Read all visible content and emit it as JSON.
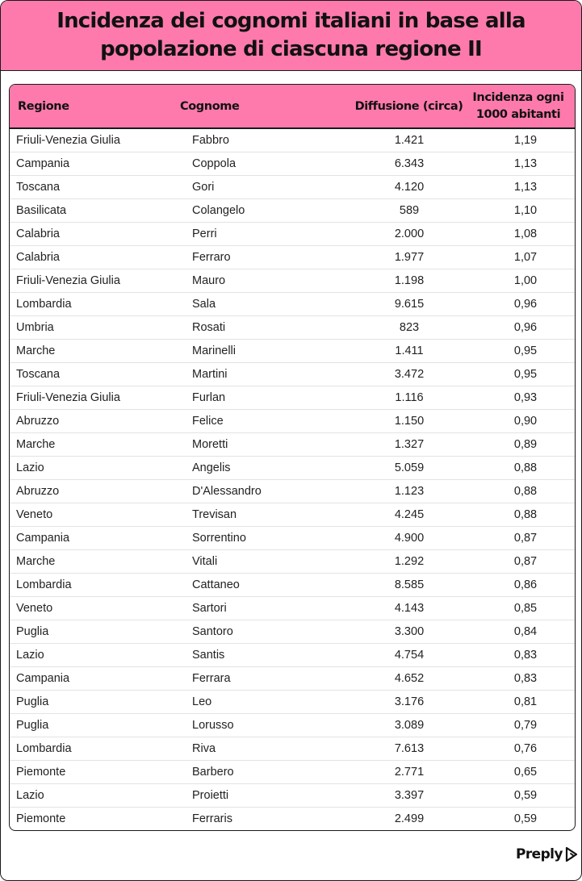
{
  "title": "Incidenza dei cognomi italiani in base alla popolazione di ciascuna regione II",
  "colors": {
    "accent_pink": "#ff7aac",
    "border": "#1a1a1a"
  },
  "table": {
    "headers": [
      "Regione",
      "Cognome",
      "Diffusione (circa)",
      "Incidenza ogni 1000 abitanti"
    ],
    "rows": [
      [
        "Friuli-Venezia Giulia",
        "Fabbro",
        "1.421",
        "1,19"
      ],
      [
        "Campania",
        "Coppola",
        "6.343",
        "1,13"
      ],
      [
        "Toscana",
        "Gori",
        "4.120",
        "1,13"
      ],
      [
        "Basilicata",
        "Colangelo",
        "589",
        "1,10"
      ],
      [
        "Calabria",
        "Perri",
        "2.000",
        "1,08"
      ],
      [
        "Calabria",
        "Ferraro",
        "1.977",
        "1,07"
      ],
      [
        "Friuli-Venezia Giulia",
        "Mauro",
        "1.198",
        "1,00"
      ],
      [
        "Lombardia",
        "Sala",
        "9.615",
        "0,96"
      ],
      [
        "Umbria",
        "Rosati",
        "823",
        "0,96"
      ],
      [
        "Marche",
        "Marinelli",
        "1.411",
        "0,95"
      ],
      [
        "Toscana",
        "Martini",
        "3.472",
        "0,95"
      ],
      [
        "Friuli-Venezia Giulia",
        "Furlan",
        "1.116",
        "0,93"
      ],
      [
        "Abruzzo",
        "Felice",
        "1.150",
        "0,90"
      ],
      [
        "Marche",
        "Moretti",
        "1.327",
        "0,89"
      ],
      [
        "Lazio",
        "Angelis",
        "5.059",
        "0,88"
      ],
      [
        "Abruzzo",
        "D'Alessandro",
        "1.123",
        "0,88"
      ],
      [
        "Veneto",
        "Trevisan",
        "4.245",
        "0,88"
      ],
      [
        "Campania",
        "Sorrentino",
        "4.900",
        "0,87"
      ],
      [
        "Marche",
        "Vitali",
        "1.292",
        "0,87"
      ],
      [
        "Lombardia",
        "Cattaneo",
        "8.585",
        "0,86"
      ],
      [
        "Veneto",
        "Sartori",
        "4.143",
        "0,85"
      ],
      [
        "Puglia",
        "Santoro",
        "3.300",
        "0,84"
      ],
      [
        "Lazio",
        "Santis",
        "4.754",
        "0,83"
      ],
      [
        "Campania",
        "Ferrara",
        "4.652",
        "0,83"
      ],
      [
        "Puglia",
        "Leo",
        "3.176",
        "0,81"
      ],
      [
        "Puglia",
        "Lorusso",
        "3.089",
        "0,79"
      ],
      [
        "Lombardia",
        "Riva",
        "7.613",
        "0,76"
      ],
      [
        "Piemonte",
        "Barbero",
        "2.771",
        "0,65"
      ],
      [
        "Lazio",
        "Proietti",
        "3.397",
        "0,59"
      ],
      [
        "Piemonte",
        "Ferraris",
        "2.499",
        "0,59"
      ]
    ]
  },
  "brand": {
    "name": "Preply",
    "icon": "preply-logo-icon"
  }
}
